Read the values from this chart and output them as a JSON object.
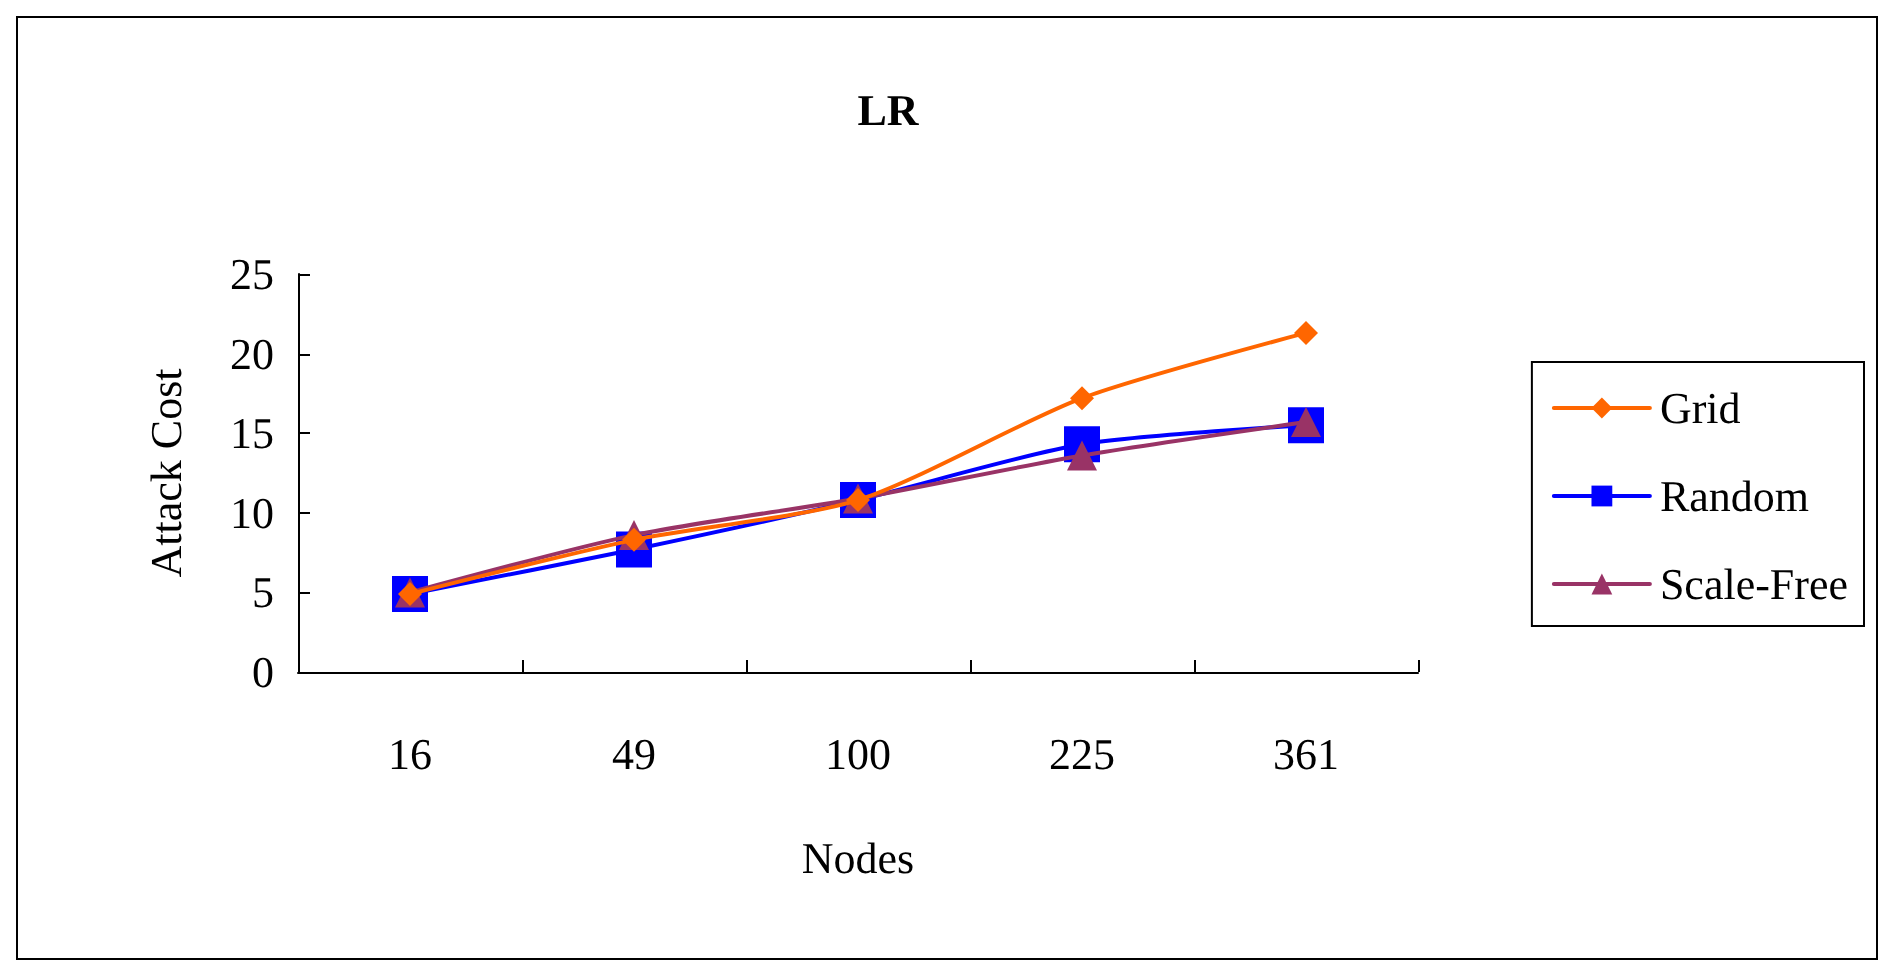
{
  "chart_data": {
    "type": "line",
    "title": "LR",
    "xlabel": "Nodes",
    "ylabel": "Attack Cost",
    "categories": [
      "16",
      "49",
      "100",
      "225",
      "361"
    ],
    "series": [
      {
        "name": "Grid",
        "color": "#ff6600",
        "marker": "diamond",
        "values": [
          4.9,
          8.3,
          10.8,
          17.2,
          21.3
        ]
      },
      {
        "name": "Random",
        "color": "#0000ff",
        "marker": "square",
        "values": [
          4.9,
          7.7,
          10.8,
          14.3,
          15.5
        ]
      },
      {
        "name": "Scale-Free",
        "color": "#993366",
        "marker": "triangle",
        "values": [
          5.0,
          8.6,
          10.9,
          13.6,
          15.7
        ]
      }
    ],
    "ylim": [
      0,
      25
    ],
    "yticks": [
      0,
      5,
      10,
      15,
      20,
      25
    ],
    "grid": false,
    "legend": "right",
    "line_style": "solid"
  }
}
